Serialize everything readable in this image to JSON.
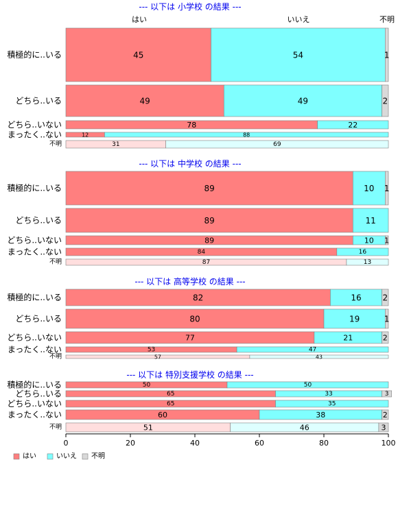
{
  "chart_data": {
    "type": "bar",
    "orientation": "horizontal-stacked-100",
    "categories": [
      "はい",
      "いいえ",
      "不明"
    ],
    "colors": {
      "はい": "#ff7f7f",
      "いいえ": "#7fffff",
      "不明": "#d9d9d9",
      "missing_row_yes": "#ffdede",
      "missing_row_no": "#deffff",
      "missing_row_unknown": "#d9d9d9"
    },
    "xlim": [
      0,
      100
    ],
    "x_ticks": [
      "0",
      "20",
      "40",
      "60",
      "80",
      "100"
    ],
    "legend_position": "bottom-left",
    "panels": [
      {
        "title": "--- 以下は 小学校 の結果 ---",
        "rows": [
          {
            "label": "積極的に..いる",
            "values": [
              45,
              54,
              1
            ],
            "value_labels": [
              "45",
              "54",
              "1"
            ]
          },
          {
            "label": "どちら..いる",
            "values": [
              49,
              49,
              2
            ],
            "value_labels": [
              "49",
              "49",
              "2"
            ]
          },
          {
            "label": "どちら..いない",
            "values": [
              78,
              22,
              0
            ],
            "value_labels": [
              "78",
              "22",
              ""
            ]
          },
          {
            "label": "まったく..ない",
            "values": [
              12,
              88,
              0
            ],
            "value_labels": [
              "12",
              "88",
              ""
            ]
          },
          {
            "label": "不明",
            "values": [
              31,
              69,
              0
            ],
            "value_labels": [
              "31",
              "69",
              ""
            ]
          }
        ]
      },
      {
        "title": "--- 以下は 中学校 の結果 ---",
        "rows": [
          {
            "label": "積極的に..いる",
            "values": [
              89,
              10,
              1
            ],
            "value_labels": [
              "89",
              "10",
              "1"
            ]
          },
          {
            "label": "どちら..いる",
            "values": [
              89,
              11,
              0
            ],
            "value_labels": [
              "89",
              "11",
              ""
            ]
          },
          {
            "label": "どちら..いない",
            "values": [
              89,
              10,
              1
            ],
            "value_labels": [
              "89",
              "10",
              "1"
            ]
          },
          {
            "label": "まったく..ない",
            "values": [
              84,
              16,
              0
            ],
            "value_labels": [
              "84",
              "16",
              ""
            ]
          },
          {
            "label": "不明",
            "values": [
              87,
              13,
              0
            ],
            "value_labels": [
              "87",
              "13",
              ""
            ]
          }
        ]
      },
      {
        "title": "--- 以下は 高等学校 の結果 ---",
        "rows": [
          {
            "label": "積極的に..いる",
            "values": [
              82,
              16,
              2
            ],
            "value_labels": [
              "82",
              "16",
              "2"
            ]
          },
          {
            "label": "どちら..いる",
            "values": [
              80,
              19,
              1
            ],
            "value_labels": [
              "80",
              "19",
              "1"
            ]
          },
          {
            "label": "どちら..いない",
            "values": [
              77,
              21,
              2
            ],
            "value_labels": [
              "77",
              "21",
              "2"
            ]
          },
          {
            "label": "まったく..ない",
            "values": [
              53,
              47,
              0
            ],
            "value_labels": [
              "53",
              "47",
              ""
            ]
          },
          {
            "label": "不明",
            "values": [
              57,
              43,
              0
            ],
            "value_labels": [
              "57",
              "43",
              ""
            ]
          }
        ]
      },
      {
        "title": "--- 以下は 特別支援学校 の結果 ---",
        "rows": [
          {
            "label": "積極的に..いる",
            "values": [
              50,
              50,
              0
            ],
            "value_labels": [
              "50",
              "50",
              ""
            ]
          },
          {
            "label": "どちら..いる",
            "values": [
              65,
              33,
              3
            ],
            "value_labels": [
              "65",
              "33",
              "3"
            ]
          },
          {
            "label": "どちら..いない",
            "values": [
              65,
              35,
              0
            ],
            "value_labels": [
              "65",
              "35",
              ""
            ]
          },
          {
            "label": "まったく..ない",
            "values": [
              60,
              38,
              2
            ],
            "value_labels": [
              "60",
              "38",
              "2"
            ]
          },
          {
            "label": "不明",
            "values": [
              51,
              46,
              3
            ],
            "value_labels": [
              "51",
              "46",
              "3"
            ]
          }
        ]
      }
    ],
    "legend": [
      "はい",
      "いいえ",
      "不明"
    ]
  }
}
